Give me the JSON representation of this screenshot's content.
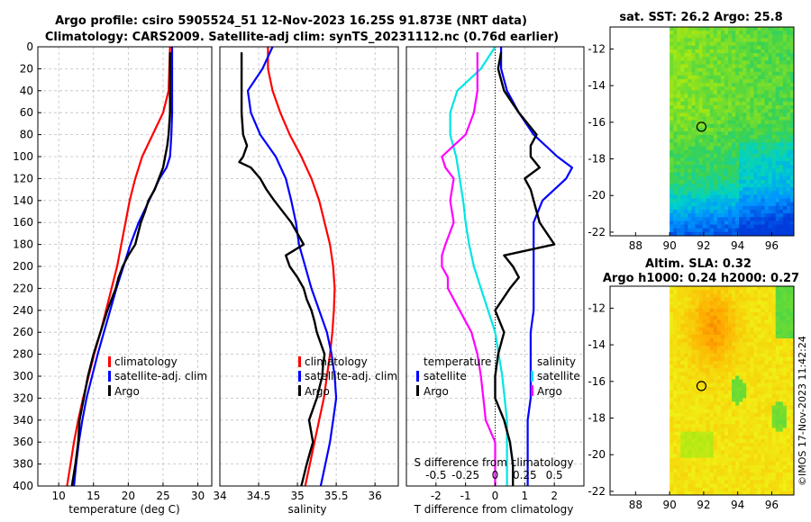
{
  "title_line1": "Argo profile: csiro 5905524_51 12-Nov-2023 16.25S 91.873E (NRT data)",
  "title_line2": "Climatology: CARS2009. Satellite-adj clim: synTS_20231112.nc (0.76d earlier)",
  "credit": "©IMOS 17-Nov-2023 11:42:24",
  "colors": {
    "climatology": "#ff0000",
    "satellite": "#0000ff",
    "argo": "#000000",
    "t_diff": "#00e5e5",
    "s_diff": "#ff00ff"
  },
  "depth_ticks": [
    "0",
    "20",
    "40",
    "60",
    "80",
    "100",
    "120",
    "140",
    "160",
    "180",
    "200",
    "220",
    "240",
    "260",
    "280",
    "300",
    "320",
    "340",
    "360",
    "380",
    "400"
  ],
  "chart_data": [
    {
      "type": "line",
      "xlabel": "temperature (deg C)",
      "xlim": [
        7,
        32
      ],
      "ylim": [
        400,
        0
      ],
      "x_ticks": [
        "10",
        "15",
        "20",
        "25",
        "30"
      ],
      "legend": [
        "climatology",
        "satellite-adj. clim",
        "Argo"
      ],
      "series": [
        {
          "name": "climatology",
          "depth": [
            0,
            40,
            60,
            80,
            100,
            120,
            140,
            160,
            180,
            200,
            220,
            240,
            260,
            280,
            300,
            320,
            340,
            360,
            380,
            400
          ],
          "values": [
            26.0,
            25.8,
            25.0,
            23.5,
            22.0,
            21.0,
            20.2,
            19.6,
            19.0,
            18.4,
            17.6,
            16.8,
            16.0,
            15.1,
            14.3,
            13.5,
            12.8,
            12.2,
            11.7,
            11.2
          ]
        },
        {
          "name": "satellite-adj. clim",
          "depth": [
            0,
            40,
            60,
            80,
            100,
            110,
            120,
            140,
            160,
            180,
            200,
            220,
            240,
            260,
            280,
            300,
            320,
            340,
            360,
            380,
            400
          ],
          "values": [
            26.3,
            26.3,
            26.3,
            26.2,
            26.0,
            25.5,
            24.5,
            23.0,
            21.5,
            20.3,
            19.3,
            18.3,
            17.4,
            16.5,
            15.6,
            14.8,
            14.0,
            13.4,
            12.9,
            12.5,
            12.2
          ]
        },
        {
          "name": "Argo",
          "depth": [
            5,
            40,
            60,
            80,
            90,
            100,
            110,
            120,
            130,
            140,
            150,
            160,
            170,
            180,
            190,
            200,
            210,
            220,
            230,
            240,
            250,
            260,
            270,
            280,
            290,
            300,
            320,
            340,
            360,
            380,
            400
          ],
          "values": [
            26.0,
            26.0,
            26.0,
            25.8,
            25.6,
            25.3,
            25.0,
            24.4,
            23.8,
            22.9,
            22.4,
            21.8,
            21.4,
            21.0,
            20.0,
            19.2,
            18.6,
            18.2,
            17.6,
            17.0,
            16.5,
            16.0,
            15.5,
            15.0,
            14.6,
            14.2,
            13.6,
            13.0,
            12.8,
            12.4,
            11.9
          ]
        }
      ]
    },
    {
      "type": "line",
      "xlabel": "salinity",
      "xlim": [
        34,
        36.3
      ],
      "ylim": [
        400,
        0
      ],
      "x_ticks": [
        "34",
        "34.5",
        "35",
        "35.5",
        "36"
      ],
      "legend": [
        "climatology",
        "satellite-adj. clim",
        "Argo"
      ],
      "series": [
        {
          "name": "climatology",
          "depth": [
            0,
            20,
            40,
            60,
            80,
            100,
            120,
            140,
            160,
            180,
            200,
            220,
            240,
            260,
            280,
            300,
            320,
            340,
            360,
            380,
            400
          ],
          "values": [
            34.62,
            34.62,
            34.68,
            34.78,
            34.9,
            35.05,
            35.18,
            35.28,
            35.35,
            35.42,
            35.46,
            35.48,
            35.47,
            35.45,
            35.42,
            35.38,
            35.34,
            35.28,
            35.22,
            35.16,
            35.1
          ]
        },
        {
          "name": "satellite-adj. clim",
          "depth": [
            0,
            20,
            40,
            60,
            80,
            100,
            120,
            140,
            160,
            180,
            200,
            220,
            240,
            260,
            280,
            300,
            320,
            340,
            360,
            380,
            400
          ],
          "values": [
            34.68,
            34.55,
            34.36,
            34.4,
            34.52,
            34.72,
            34.85,
            34.92,
            34.98,
            35.02,
            35.1,
            35.18,
            35.28,
            35.38,
            35.44,
            35.48,
            35.5,
            35.46,
            35.42,
            35.36,
            35.3
          ]
        },
        {
          "name": "Argo",
          "depth": [
            5,
            40,
            60,
            80,
            90,
            100,
            105,
            110,
            120,
            130,
            140,
            160,
            180,
            190,
            200,
            210,
            220,
            230,
            240,
            250,
            260,
            270,
            280,
            290,
            300,
            320,
            340,
            360,
            380,
            400
          ],
          "values": [
            34.28,
            34.28,
            34.28,
            34.3,
            34.35,
            34.3,
            34.25,
            34.4,
            34.52,
            34.6,
            34.7,
            34.92,
            35.08,
            34.85,
            34.9,
            35.0,
            35.08,
            35.12,
            35.18,
            35.22,
            35.25,
            35.3,
            35.35,
            35.33,
            35.32,
            35.25,
            35.15,
            35.2,
            35.12,
            35.05
          ]
        }
      ]
    },
    {
      "type": "line",
      "xlabel": "T difference from climatology",
      "xlabel_top": "S difference from climatology",
      "xlim": [
        -3,
        3
      ],
      "ylim": [
        400,
        0
      ],
      "x_ticks": [
        "-2",
        "-1",
        "0",
        "1",
        "2"
      ],
      "x_ticks_top": [
        "-0.5",
        "-0.25",
        "0",
        "0.25",
        "0.5"
      ],
      "legend_left_title": "temperature",
      "legend_right_title": "salinity",
      "legend": [
        "satellite",
        "Argo"
      ],
      "series": [
        {
          "name": "satellite T diff",
          "depth": [
            0,
            20,
            40,
            60,
            80,
            100,
            110,
            120,
            140,
            160,
            180,
            200,
            220,
            240,
            260,
            280,
            300,
            320,
            340,
            360,
            380,
            400
          ],
          "values": [
            0.2,
            0.2,
            0.4,
            0.8,
            1.3,
            2.1,
            2.6,
            2.4,
            1.6,
            1.3,
            1.3,
            1.3,
            1.3,
            1.3,
            1.2,
            1.2,
            1.2,
            1.2,
            1.1,
            1.1,
            1.1,
            1.1
          ]
        },
        {
          "name": "Argo T diff",
          "depth": [
            5,
            20,
            40,
            60,
            80,
            90,
            100,
            110,
            120,
            130,
            140,
            160,
            180,
            190,
            200,
            210,
            220,
            240,
            260,
            280,
            300,
            320,
            340,
            360,
            380,
            400
          ],
          "values": [
            0.2,
            0.1,
            0.3,
            0.8,
            1.4,
            1.2,
            1.2,
            1.5,
            1.0,
            1.2,
            1.3,
            1.5,
            2.0,
            0.3,
            0.6,
            0.8,
            0.5,
            0.0,
            0.3,
            0.1,
            0.0,
            0.0,
            0.3,
            0.5,
            0.6,
            0.6
          ]
        },
        {
          "name": "satellite S diff",
          "depth": [
            0,
            20,
            40,
            60,
            80,
            100,
            120,
            140,
            160,
            180,
            200,
            220,
            240,
            260,
            280,
            300,
            320,
            340,
            360,
            380,
            400
          ],
          "values": [
            0.0,
            -0.12,
            -0.32,
            -0.38,
            -0.38,
            -0.33,
            -0.3,
            -0.27,
            -0.25,
            -0.22,
            -0.18,
            -0.12,
            -0.06,
            0.0,
            0.03,
            0.06,
            0.08,
            0.1,
            0.1,
            0.1,
            0.1
          ]
        },
        {
          "name": "Argo S diff",
          "depth": [
            5,
            40,
            60,
            80,
            90,
            100,
            110,
            120,
            140,
            160,
            180,
            190,
            200,
            210,
            220,
            240,
            260,
            280,
            300,
            320,
            340,
            360,
            380,
            400
          ],
          "values": [
            -0.15,
            -0.15,
            -0.18,
            -0.25,
            -0.35,
            -0.45,
            -0.42,
            -0.35,
            -0.38,
            -0.35,
            -0.42,
            -0.45,
            -0.45,
            -0.4,
            -0.4,
            -0.3,
            -0.2,
            -0.15,
            -0.12,
            -0.1,
            -0.08,
            0.0,
            0.0,
            0.0
          ]
        }
      ]
    },
    {
      "type": "heatmap",
      "title": "sat. SST: 26.2 Argo: 25.8",
      "xlim": [
        86.5,
        97.3
      ],
      "ylim": [
        -22.2,
        -10.8
      ],
      "x_ticks": [
        "88",
        "90",
        "92",
        "94",
        "96"
      ],
      "y_ticks": [
        "-12",
        "-14",
        "-16",
        "-18",
        "-20",
        "-22"
      ],
      "argo_lon": 91.87,
      "argo_lat": -16.25
    },
    {
      "type": "heatmap",
      "title_line1": "Altim. SLA: 0.32",
      "title_line2": "Argo h1000: 0.24 h2000: 0.27",
      "xlim": [
        86.5,
        97.3
      ],
      "ylim": [
        -22.2,
        -10.8
      ],
      "x_ticks": [
        "88",
        "90",
        "92",
        "94",
        "96"
      ],
      "y_ticks": [
        "-12",
        "-14",
        "-16",
        "-18",
        "-20",
        "-22"
      ],
      "argo_lon": 91.87,
      "argo_lat": -16.25
    }
  ]
}
